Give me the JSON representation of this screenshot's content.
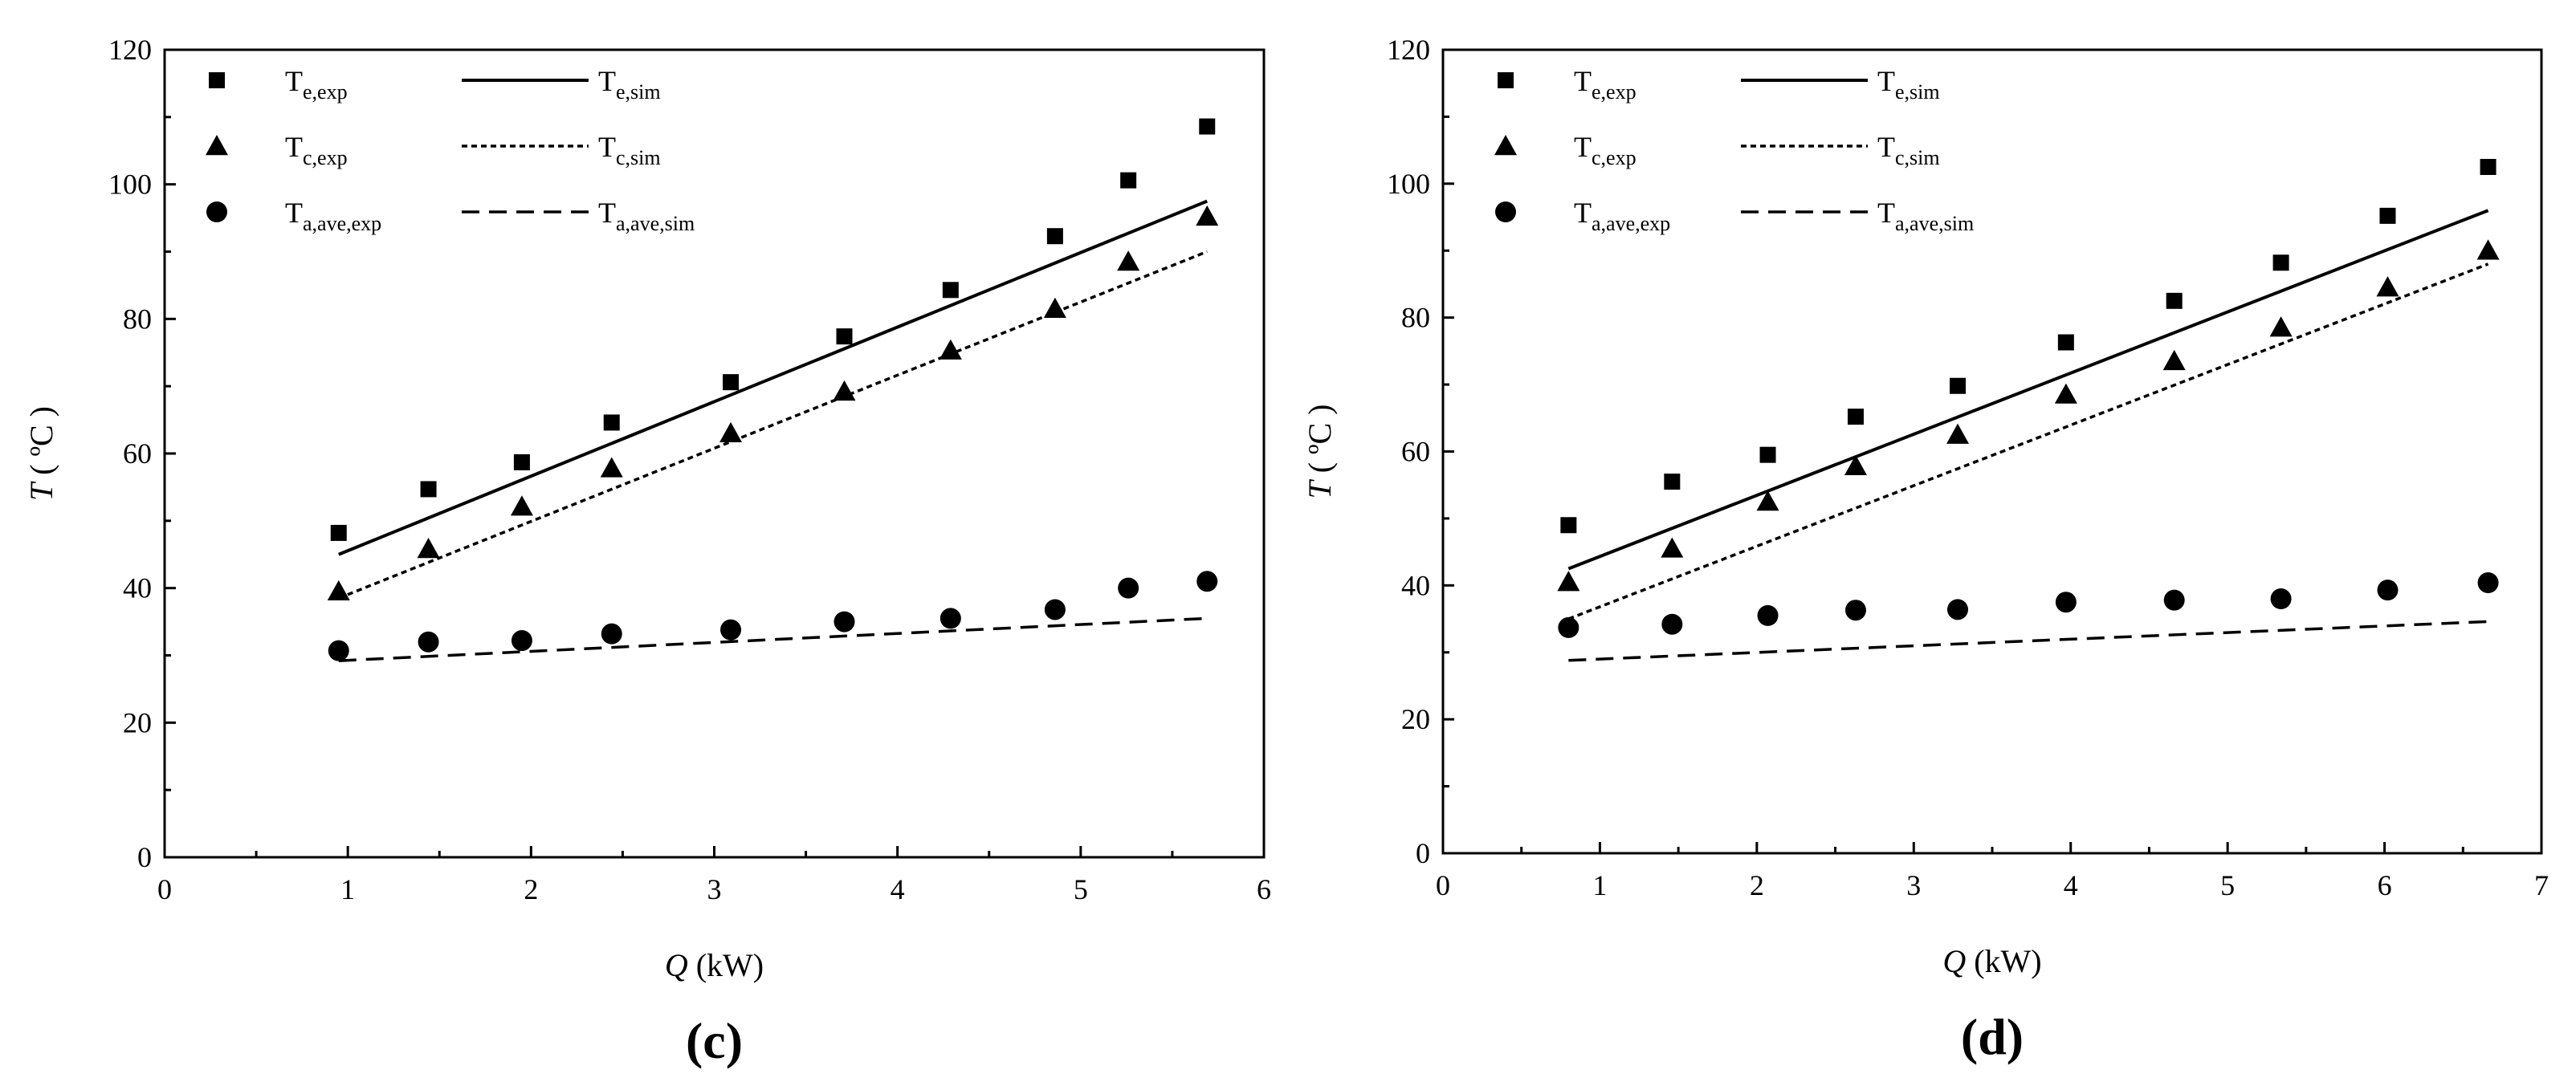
{
  "chart_data": [
    {
      "type": "scatter",
      "panel_label": "(c)",
      "xlabel_symbol": "Q",
      "xlabel_unit": " (kW)",
      "ylabel_symbol": "T",
      "ylabel_unit": " ( ºC )",
      "xlim": [
        0,
        6
      ],
      "ylim": [
        0,
        120
      ],
      "x_major_ticks": [
        0,
        1,
        2,
        3,
        4,
        5,
        6
      ],
      "y_major_ticks": [
        0,
        20,
        40,
        60,
        80,
        100,
        120
      ],
      "x_tick_labels": [
        "0",
        "1",
        "2",
        "3",
        "4",
        "5",
        "6"
      ],
      "y_tick_labels": [
        "0",
        "20",
        "40",
        "60",
        "80",
        "100",
        "120"
      ],
      "legend_position": "top-left",
      "series": [
        {
          "name": "Te,exp",
          "base": "T",
          "sub": "e,exp",
          "kind": "marker",
          "marker": "square",
          "x": [
            0.95,
            1.44,
            1.95,
            2.44,
            3.09,
            3.71,
            4.29,
            4.86,
            5.26,
            5.69
          ],
          "values": [
            48.2,
            54.7,
            58.7,
            64.6,
            70.6,
            77.4,
            84.3,
            92.3,
            100.6,
            108.6
          ]
        },
        {
          "name": "Tc,exp",
          "base": "T",
          "sub": "c,exp",
          "kind": "marker",
          "marker": "triangle",
          "x": [
            0.95,
            1.44,
            1.95,
            2.44,
            3.09,
            3.71,
            4.29,
            4.86,
            5.26,
            5.69
          ],
          "values": [
            39.5,
            45.8,
            52.1,
            57.8,
            63.0,
            69.2,
            75.3,
            81.5,
            88.5,
            95.2
          ]
        },
        {
          "name": "Ta,ave,exp",
          "base": "T",
          "sub": "a,ave,exp",
          "kind": "marker",
          "marker": "circle",
          "x": [
            0.95,
            1.44,
            1.95,
            2.44,
            3.09,
            3.71,
            4.29,
            4.86,
            5.26,
            5.69
          ],
          "values": [
            30.7,
            32.0,
            32.2,
            33.2,
            33.8,
            35.0,
            35.5,
            36.8,
            40.0,
            41.0
          ]
        },
        {
          "name": "Te,sim",
          "base": "T",
          "sub": "e,sim",
          "kind": "line",
          "dash": "solid",
          "x": [
            0.95,
            5.69
          ],
          "values": [
            45.0,
            97.5
          ]
        },
        {
          "name": "Tc,sim",
          "base": "T",
          "sub": "c,sim",
          "kind": "line",
          "dash": "dotted",
          "x": [
            0.95,
            5.69
          ],
          "values": [
            38.5,
            90.0
          ]
        },
        {
          "name": "Ta,ave,sim",
          "base": "T",
          "sub": "a,ave,sim",
          "kind": "line",
          "dash": "dashed",
          "x": [
            0.95,
            5.69
          ],
          "values": [
            29.2,
            35.5
          ]
        }
      ]
    },
    {
      "type": "scatter",
      "panel_label": "(d)",
      "xlabel_symbol": "Q",
      "xlabel_unit": " (kW)",
      "ylabel_symbol": "T",
      "ylabel_unit": " ( ºC )",
      "xlim": [
        0,
        7
      ],
      "ylim": [
        0,
        120
      ],
      "x_major_ticks": [
        0,
        1,
        2,
        3,
        4,
        5,
        6,
        7
      ],
      "y_major_ticks": [
        0,
        20,
        40,
        60,
        80,
        100,
        120
      ],
      "x_tick_labels": [
        "0",
        "1",
        "2",
        "3",
        "4",
        "5",
        "6",
        "7"
      ],
      "y_tick_labels": [
        "0",
        "20",
        "40",
        "60",
        "80",
        "100",
        "120"
      ],
      "legend_position": "top-left",
      "series": [
        {
          "name": "Te,exp",
          "base": "T",
          "sub": "e,exp",
          "kind": "marker",
          "marker": "square",
          "x": [
            0.8,
            1.46,
            2.07,
            2.63,
            3.28,
            3.97,
            4.66,
            5.34,
            6.02,
            6.66
          ],
          "values": [
            49.0,
            55.5,
            59.5,
            65.2,
            69.8,
            76.3,
            82.5,
            88.2,
            95.2,
            102.5
          ]
        },
        {
          "name": "Tc,exp",
          "base": "T",
          "sub": "c,exp",
          "kind": "marker",
          "marker": "triangle",
          "x": [
            0.8,
            1.46,
            2.07,
            2.63,
            3.28,
            3.97,
            4.66,
            5.34,
            6.02,
            6.66
          ],
          "values": [
            40.5,
            45.5,
            52.5,
            57.8,
            62.5,
            68.5,
            73.5,
            78.5,
            84.5,
            90.0
          ]
        },
        {
          "name": "Ta,ave,exp",
          "base": "T",
          "sub": "a,ave,exp",
          "kind": "marker",
          "marker": "circle",
          "x": [
            0.8,
            1.46,
            2.07,
            2.63,
            3.28,
            3.97,
            4.66,
            5.34,
            6.02,
            6.66
          ],
          "values": [
            33.7,
            34.2,
            35.5,
            36.3,
            36.4,
            37.5,
            37.8,
            38.0,
            39.3,
            40.4
          ]
        },
        {
          "name": "Te,sim",
          "base": "T",
          "sub": "e,sim",
          "kind": "line",
          "dash": "solid",
          "x": [
            0.8,
            6.66
          ],
          "values": [
            42.5,
            96.0
          ]
        },
        {
          "name": "Tc,sim",
          "base": "T",
          "sub": "c,sim",
          "kind": "line",
          "dash": "dotted",
          "x": [
            0.8,
            6.66
          ],
          "values": [
            35.0,
            88.0
          ]
        },
        {
          "name": "Ta,ave,sim",
          "base": "T",
          "sub": "a,ave,sim",
          "kind": "line",
          "dash": "dashed",
          "x": [
            0.8,
            6.66
          ],
          "values": [
            28.8,
            34.6
          ]
        }
      ]
    }
  ]
}
